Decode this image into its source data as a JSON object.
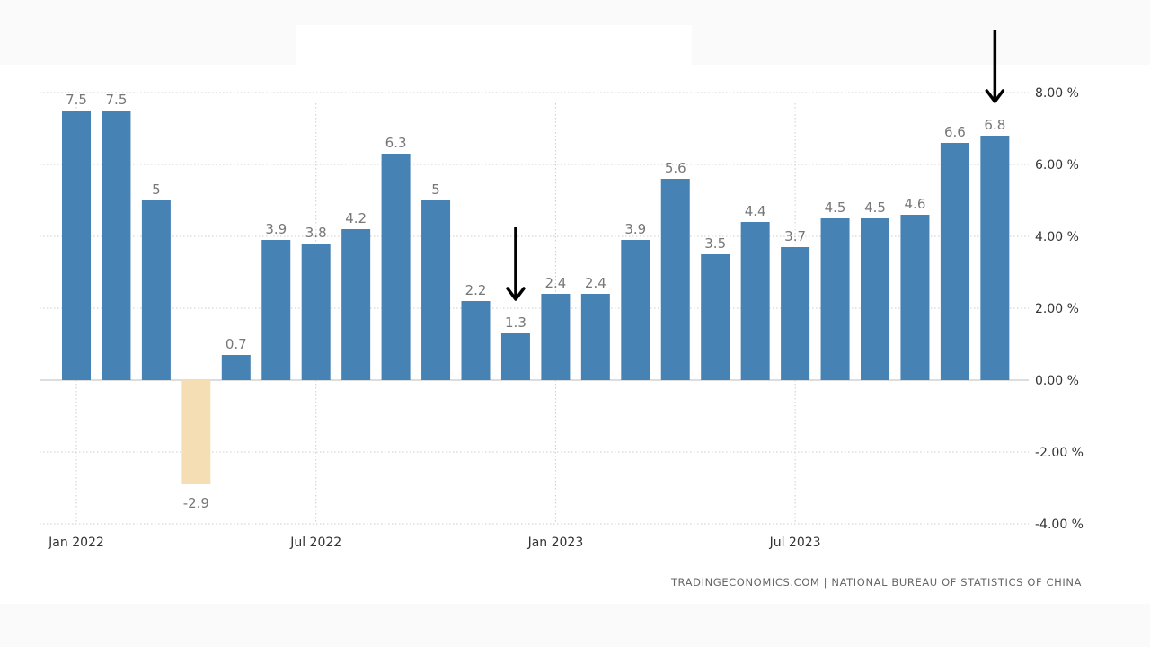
{
  "chart_data": {
    "type": "bar",
    "categories": [
      "Jan 2022",
      "Feb 2022",
      "Mar 2022",
      "Apr 2022",
      "May 2022",
      "Jun 2022",
      "Jul 2022",
      "Aug 2022",
      "Sep 2022",
      "Oct 2022",
      "Nov 2022",
      "Dec 2022",
      "Jan 2023",
      "Feb 2023",
      "Mar 2023",
      "Apr 2023",
      "May 2023",
      "Jun 2023",
      "Jul 2023",
      "Aug 2023",
      "Sep 2023",
      "Oct 2023",
      "Nov 2023",
      "Dec 2023"
    ],
    "values": [
      7.5,
      7.5,
      5,
      -2.9,
      0.7,
      3.9,
      3.8,
      4.2,
      6.3,
      5,
      2.2,
      1.3,
      2.4,
      2.4,
      3.9,
      5.6,
      3.5,
      4.4,
      3.7,
      4.5,
      4.5,
      4.6,
      6.6,
      6.8
    ],
    "value_labels": [
      "7.5",
      "7.5",
      "5",
      "-2.9",
      "0.7",
      "3.9",
      "3.8",
      "4.2",
      "6.3",
      "5",
      "2.2",
      "1.3",
      "2.4",
      "2.4",
      "3.9",
      "5.6",
      "3.5",
      "4.4",
      "3.7",
      "4.5",
      "4.5",
      "4.6",
      "6.6",
      "6.8"
    ],
    "x_tick_labels": [
      "Jan 2022",
      "Jul 2022",
      "Jan 2023",
      "Jul 2023"
    ],
    "x_tick_indices": [
      0,
      6,
      12,
      18
    ],
    "y_ticks": [
      8,
      6,
      4,
      2,
      0,
      -2,
      -4
    ],
    "y_tick_labels": [
      "8.00 %",
      "6.00 %",
      "4.00 %",
      "2.00 %",
      "0.00 %",
      "-2.00 %",
      "-4.00 %"
    ],
    "ylim": [
      -4,
      8
    ],
    "y_axis_side": "right",
    "grid": true,
    "title": "",
    "xlabel": "",
    "ylabel": "",
    "annotation_arrow_indices": [
      11,
      23
    ],
    "colors": {
      "positive": "#4682b4",
      "negative": "#f5deb3",
      "value_label": "#777777",
      "tick_label": "#333333",
      "grid": "#cccccc",
      "source": "#666666",
      "arrow": "#000000"
    },
    "source": "TRADINGECONOMICS.COM  |  NATIONAL BUREAU OF STATISTICS OF CHINA"
  }
}
